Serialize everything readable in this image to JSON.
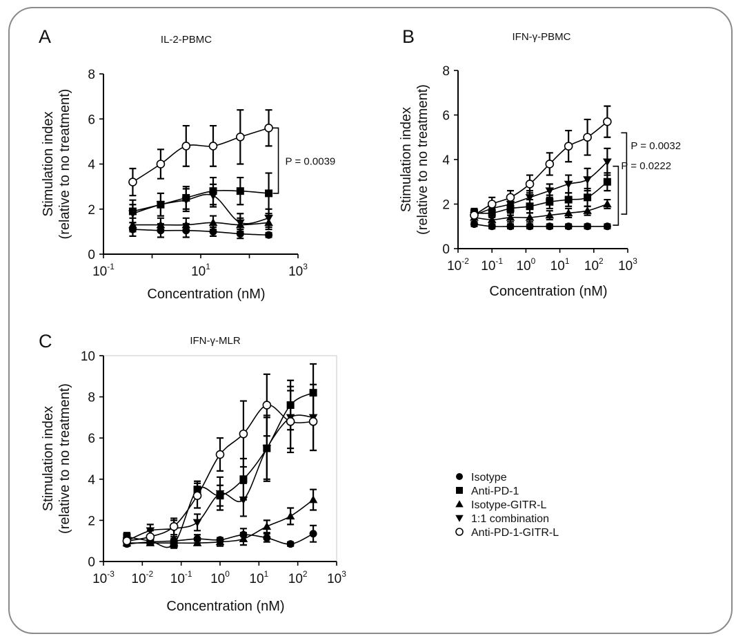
{
  "chart_data": [
    {
      "panel": "A",
      "type": "scatter",
      "title": "IL-2-PBMC",
      "xlabel": "Concentration (nM)",
      "ylabel": [
        "Stimulation index",
        "(relative to no treatment)"
      ],
      "xscale": "log",
      "xlim": [
        0.1,
        1000
      ],
      "ylim": [
        0,
        8
      ],
      "xticks": [
        {
          "base": "10",
          "exp": "-1"
        },
        {
          "base": "10",
          "exp": "1"
        },
        {
          "base": "10",
          "exp": "3"
        }
      ],
      "yticks": [
        0,
        2,
        4,
        6,
        8
      ],
      "grid": false,
      "x": [
        0.4,
        1.5,
        5,
        18,
        65,
        250
      ],
      "series": [
        {
          "marker": "circle-filled",
          "values": [
            1.1,
            1.05,
            1.05,
            1.0,
            0.9,
            0.85
          ],
          "err": [
            0.3,
            0.3,
            0.3,
            0.2,
            0.2,
            0.1
          ]
        },
        {
          "marker": "square",
          "values": [
            1.9,
            2.2,
            2.5,
            2.8,
            2.8,
            2.7
          ],
          "err": [
            0.5,
            0.5,
            0.5,
            0.6,
            0.6,
            0.9
          ]
        },
        {
          "marker": "triangle-up",
          "values": [
            1.3,
            1.3,
            1.3,
            1.4,
            1.3,
            1.4
          ],
          "err": [
            0.3,
            0.3,
            0.3,
            0.3,
            0.3,
            0.3
          ]
        },
        {
          "marker": "triangle-down",
          "values": [
            1.8,
            2.2,
            2.4,
            2.6,
            1.4,
            1.6
          ],
          "err": [
            0.4,
            0.5,
            0.5,
            0.5,
            0.4,
            0.4
          ]
        },
        {
          "marker": "circle-open",
          "values": [
            3.2,
            4.0,
            4.8,
            4.8,
            5.2,
            5.6
          ],
          "err": [
            0.6,
            0.65,
            0.9,
            0.9,
            1.2,
            0.8
          ]
        }
      ],
      "annotations": [
        {
          "text": "P = 0.0039"
        }
      ]
    },
    {
      "panel": "B",
      "type": "scatter",
      "title": "IFN-γ-PBMC",
      "xlabel": "Concentration (nM)",
      "ylabel": [
        "Stimulation index",
        "(relative to no treatment)"
      ],
      "xscale": "log",
      "xlim": [
        0.01,
        1000
      ],
      "ylim": [
        0,
        8
      ],
      "xticks": [
        {
          "base": "10",
          "exp": "-2"
        },
        {
          "base": "10",
          "exp": "-1"
        },
        {
          "base": "10",
          "exp": "0"
        },
        {
          "base": "10",
          "exp": "1"
        },
        {
          "base": "10",
          "exp": "2"
        },
        {
          "base": "10",
          "exp": "3"
        }
      ],
      "yticks": [
        0,
        2,
        4,
        6,
        8
      ],
      "grid": false,
      "x": [
        0.03,
        0.1,
        0.35,
        1.3,
        5,
        18,
        65,
        250
      ],
      "series": [
        {
          "marker": "circle-filled",
          "values": [
            1.1,
            1.0,
            1.0,
            1.0,
            1.0,
            1.0,
            1.0,
            1.0
          ],
          "err": [
            0.1,
            0.1,
            0.1,
            0.1,
            0.1,
            0.1,
            0.1,
            0.1
          ]
        },
        {
          "marker": "square",
          "values": [
            1.6,
            1.6,
            1.8,
            1.9,
            2.1,
            2.2,
            2.3,
            3.0
          ],
          "err": [
            0.2,
            0.2,
            0.3,
            0.3,
            0.3,
            0.3,
            0.4,
            0.4
          ]
        },
        {
          "marker": "triangle-up",
          "values": [
            1.4,
            1.3,
            1.4,
            1.4,
            1.5,
            1.6,
            1.7,
            2.0
          ],
          "err": [
            0.2,
            0.2,
            0.2,
            0.2,
            0.2,
            0.2,
            0.2,
            0.2
          ]
        },
        {
          "marker": "triangle-down",
          "values": [
            1.5,
            1.8,
            2.0,
            2.3,
            2.6,
            2.9,
            3.1,
            3.9
          ],
          "err": [
            0.2,
            0.2,
            0.3,
            0.3,
            0.3,
            0.4,
            0.5,
            0.6
          ]
        },
        {
          "marker": "circle-open",
          "values": [
            1.5,
            2.0,
            2.3,
            2.9,
            3.8,
            4.6,
            5.0,
            5.7
          ],
          "err": [
            0.2,
            0.3,
            0.3,
            0.4,
            0.5,
            0.7,
            0.8,
            0.7
          ]
        }
      ],
      "annotations": [
        {
          "text": "P = 0.0032"
        },
        {
          "text": "P = 0.0222"
        }
      ]
    },
    {
      "panel": "C",
      "type": "scatter",
      "title": "IFN-γ-MLR",
      "xlabel": "Concentration (nM)",
      "ylabel": [
        "Stimulation index",
        "(relative to no treatment)"
      ],
      "xscale": "log",
      "xlim": [
        0.001,
        1000
      ],
      "ylim": [
        0,
        10
      ],
      "xticks": [
        {
          "base": "10",
          "exp": "-3"
        },
        {
          "base": "10",
          "exp": "-2"
        },
        {
          "base": "10",
          "exp": "-1"
        },
        {
          "base": "10",
          "exp": "0"
        },
        {
          "base": "10",
          "exp": "1"
        },
        {
          "base": "10",
          "exp": "2"
        },
        {
          "base": "10",
          "exp": "3"
        }
      ],
      "yticks": [
        0,
        2,
        4,
        6,
        8,
        10
      ],
      "grid": false,
      "x": [
        0.004,
        0.016,
        0.065,
        0.26,
        1.0,
        4.0,
        16,
        65,
        250
      ],
      "series": [
        {
          "marker": "circle-filled",
          "values": [
            0.85,
            0.95,
            1.0,
            1.1,
            1.05,
            1.3,
            1.15,
            0.85,
            1.35
          ],
          "err": [
            0.1,
            0.1,
            0.1,
            0.2,
            0.1,
            0.3,
            0.2,
            0.1,
            0.4
          ]
        },
        {
          "marker": "square",
          "values": [
            1.2,
            1.0,
            0.85,
            3.5,
            3.2,
            4.0,
            5.5,
            7.6,
            8.2
          ],
          "err": [
            0.2,
            0.2,
            0.2,
            0.4,
            0.5,
            1.0,
            1.6,
            1.2,
            1.4
          ]
        },
        {
          "marker": "triangle-up",
          "values": [
            0.9,
            0.9,
            0.9,
            0.9,
            0.95,
            1.1,
            1.7,
            2.2,
            3.0
          ],
          "err": [
            0.1,
            0.1,
            0.1,
            0.1,
            0.2,
            0.3,
            0.3,
            0.4,
            0.5
          ]
        },
        {
          "marker": "triangle-down",
          "values": [
            1.0,
            1.5,
            1.6,
            1.9,
            3.3,
            3.0,
            5.5,
            7.0,
            7.0
          ],
          "err": [
            0.2,
            0.3,
            0.4,
            0.4,
            0.8,
            0.8,
            1.5,
            1.5,
            1.6
          ]
        },
        {
          "marker": "circle-open",
          "values": [
            1.0,
            1.2,
            1.7,
            3.2,
            5.2,
            6.2,
            7.6,
            6.8,
            6.8
          ],
          "err": [
            0.2,
            0.3,
            0.4,
            0.6,
            0.8,
            1.6,
            1.5,
            1.5,
            1.4
          ]
        }
      ]
    }
  ],
  "legend": {
    "placement": "bottom-right",
    "entries": [
      {
        "marker": "circle-filled",
        "label": "Isotype"
      },
      {
        "marker": "square",
        "label": "Anti-PD-1"
      },
      {
        "marker": "triangle-up",
        "label": "Isotype-GITR-L"
      },
      {
        "marker": "triangle-down",
        "label": "1:1 combination"
      },
      {
        "marker": "circle-open",
        "label": "Anti-PD-1-GITR-L"
      }
    ]
  }
}
